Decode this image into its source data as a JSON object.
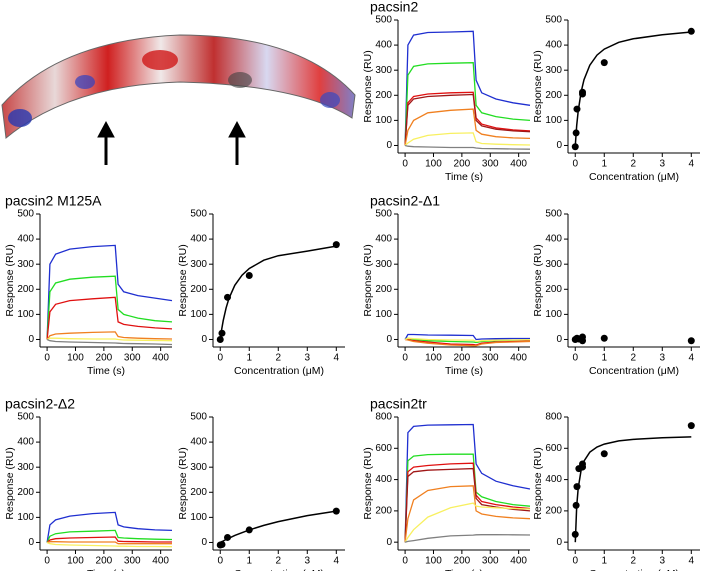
{
  "chart_data": [
    {
      "type": "line",
      "title": "pacsin2",
      "xlabel": "Time (s)",
      "ylabel": "Response (RU)",
      "x": [
        0,
        10,
        30,
        80,
        160,
        240,
        250,
        270,
        320,
        380,
        440
      ],
      "series": [
        {
          "color": "#1f2fd0",
          "values": [
            0,
            400,
            440,
            450,
            452,
            455,
            260,
            210,
            185,
            170,
            160
          ]
        },
        {
          "color": "#22dd22",
          "values": [
            0,
            280,
            315,
            325,
            328,
            330,
            160,
            130,
            115,
            105,
            100
          ]
        },
        {
          "color": "#e01010",
          "values": [
            0,
            170,
            195,
            205,
            210,
            212,
            110,
            85,
            70,
            62,
            58
          ]
        },
        {
          "color": "#a01818",
          "values": [
            0,
            160,
            185,
            195,
            200,
            203,
            100,
            78,
            65,
            58,
            55
          ]
        },
        {
          "color": "#f08020",
          "values": [
            0,
            60,
            100,
            130,
            140,
            145,
            60,
            45,
            35,
            30,
            28
          ]
        },
        {
          "color": "#f8f060",
          "values": [
            0,
            10,
            25,
            40,
            48,
            50,
            15,
            8,
            5,
            3,
            2
          ]
        },
        {
          "color": "#808080",
          "values": [
            0,
            -3,
            -5,
            -6,
            -8,
            -8,
            -10,
            -12,
            -13,
            -14,
            -15
          ]
        }
      ],
      "xlim": [
        -25,
        440
      ],
      "xticks": [
        0,
        100,
        200,
        300,
        400
      ],
      "ylim": [
        -30,
        500
      ],
      "yticks": [
        0,
        100,
        200,
        300,
        400,
        500
      ]
    },
    {
      "type": "scatter",
      "xlabel": "Concentration (μM)",
      "ylabel": "Response (RU)",
      "color": "#000000",
      "x": [
        0,
        0.03,
        0.06,
        0.25,
        0.25,
        1,
        4
      ],
      "values": [
        -5,
        50,
        145,
        205,
        212,
        330,
        455
      ],
      "fit_x": [
        0,
        0.05,
        0.1,
        0.2,
        0.3,
        0.5,
        0.75,
        1,
        1.5,
        2,
        3,
        4
      ],
      "fit_values": [
        0,
        80,
        137,
        213,
        262,
        320,
        360,
        384,
        411,
        425,
        441,
        452
      ],
      "xlim": [
        -0.25,
        4.3
      ],
      "xticks": [
        0,
        1,
        2,
        3,
        4
      ],
      "ylim": [
        -30,
        500
      ],
      "yticks": [
        0,
        100,
        200,
        300,
        400,
        500
      ]
    },
    {
      "type": "line",
      "title": "pacsin2 M125A",
      "xlabel": "Time (s)",
      "ylabel": "Response (RU)",
      "x": [
        0,
        10,
        30,
        80,
        160,
        240,
        250,
        270,
        320,
        380,
        440
      ],
      "series": [
        {
          "color": "#1f2fd0",
          "values": [
            0,
            300,
            340,
            360,
            370,
            375,
            220,
            190,
            175,
            165,
            155
          ]
        },
        {
          "color": "#22dd22",
          "values": [
            0,
            190,
            225,
            240,
            248,
            252,
            120,
            100,
            85,
            75,
            70
          ]
        },
        {
          "color": "#e01010",
          "values": [
            0,
            110,
            140,
            155,
            162,
            168,
            70,
            60,
            52,
            46,
            42
          ]
        },
        {
          "color": "#f08020",
          "values": [
            0,
            15,
            22,
            25,
            28,
            30,
            12,
            8,
            5,
            3,
            2
          ]
        },
        {
          "color": "#f8f060",
          "values": [
            0,
            5,
            5,
            3,
            2,
            2,
            0,
            -2,
            -3,
            -4,
            -5
          ]
        },
        {
          "color": "#808080",
          "values": [
            0,
            -5,
            -8,
            -10,
            -12,
            -14,
            -15,
            -16,
            -17,
            -18,
            -20
          ]
        }
      ],
      "xlim": [
        -25,
        440
      ],
      "xticks": [
        0,
        100,
        200,
        300,
        400
      ],
      "ylim": [
        -30,
        500
      ],
      "yticks": [
        0,
        100,
        200,
        300,
        400,
        500
      ]
    },
    {
      "type": "scatter",
      "xlabel": "Concentration (μM)",
      "ylabel": "Response (RU)",
      "color": "#000000",
      "x": [
        0,
        0.06,
        0.25,
        1,
        4
      ],
      "values": [
        0,
        25,
        168,
        255,
        378
      ],
      "fit_x": [
        0,
        0.05,
        0.1,
        0.2,
        0.3,
        0.5,
        0.75,
        1,
        1.5,
        2,
        3,
        4
      ],
      "fit_values": [
        0,
        41,
        75,
        126,
        164,
        216,
        256,
        283,
        316,
        334,
        352,
        372
      ],
      "xlim": [
        -0.25,
        4.3
      ],
      "xticks": [
        0,
        1,
        2,
        3,
        4
      ],
      "ylim": [
        -30,
        500
      ],
      "yticks": [
        0,
        100,
        200,
        300,
        400,
        500
      ]
    },
    {
      "type": "line",
      "title": "pacsin2-Δ1",
      "xlabel": "Time (s)",
      "ylabel": "Response (RU)",
      "x": [
        0,
        10,
        30,
        80,
        160,
        240,
        250,
        270,
        320,
        380,
        440
      ],
      "series": [
        {
          "color": "#1f2fd0",
          "values": [
            0,
            20,
            20,
            18,
            17,
            16,
            0,
            2,
            3,
            4,
            4
          ]
        },
        {
          "color": "#22dd22",
          "values": [
            0,
            5,
            0,
            -5,
            -8,
            -10,
            -12,
            -8,
            -5,
            -3,
            -2
          ]
        },
        {
          "color": "#e01010",
          "values": [
            0,
            0,
            -5,
            -10,
            -18,
            -20,
            -22,
            -15,
            -10,
            -8,
            -6
          ]
        },
        {
          "color": "#f08020",
          "values": [
            0,
            -2,
            -8,
            -15,
            -22,
            -25,
            -25,
            -18,
            -12,
            -10,
            -8
          ]
        },
        {
          "color": "#f8f060",
          "values": [
            0,
            5,
            3,
            0,
            -2,
            -3,
            -8,
            -5,
            -3,
            -2,
            -1
          ]
        }
      ],
      "xlim": [
        -25,
        440
      ],
      "xticks": [
        0,
        100,
        200,
        300,
        400
      ],
      "ylim": [
        -30,
        500
      ],
      "yticks": [
        0,
        100,
        200,
        300,
        400,
        500
      ]
    },
    {
      "type": "scatter",
      "xlabel": "Concentration (μM)",
      "ylabel": "Response (RU)",
      "color": "#000000",
      "x": [
        0,
        0.06,
        0.125,
        0.25,
        0.25,
        1,
        4
      ],
      "values": [
        0,
        5,
        2,
        10,
        -5,
        5,
        -5
      ],
      "xlim": [
        -0.25,
        4.3
      ],
      "xticks": [
        0,
        1,
        2,
        3,
        4
      ],
      "ylim": [
        -30,
        500
      ],
      "yticks": [
        0,
        100,
        200,
        300,
        400,
        500
      ]
    },
    {
      "type": "line",
      "title": "pacsin2-Δ2",
      "xlabel": "Time (s)",
      "ylabel": "Response (RU)",
      "x": [
        0,
        10,
        30,
        80,
        160,
        240,
        250,
        270,
        320,
        380,
        440
      ],
      "series": [
        {
          "color": "#1f2fd0",
          "values": [
            0,
            70,
            90,
            105,
            115,
            120,
            70,
            62,
            55,
            50,
            48
          ]
        },
        {
          "color": "#22dd22",
          "values": [
            0,
            25,
            35,
            42,
            45,
            48,
            20,
            18,
            15,
            13,
            12
          ]
        },
        {
          "color": "#e01010",
          "values": [
            0,
            10,
            15,
            18,
            20,
            22,
            5,
            4,
            3,
            2,
            2
          ]
        },
        {
          "color": "#f08020",
          "values": [
            0,
            3,
            3,
            2,
            2,
            2,
            -5,
            -5,
            -5,
            -5,
            -5
          ]
        },
        {
          "color": "#f8f060",
          "values": [
            0,
            -5,
            -8,
            -10,
            -12,
            -14,
            -15,
            -15,
            -16,
            -16,
            -17
          ]
        }
      ],
      "xlim": [
        -25,
        440
      ],
      "xticks": [
        0,
        100,
        200,
        300,
        400
      ],
      "ylim": [
        -30,
        500
      ],
      "yticks": [
        0,
        100,
        200,
        300,
        400,
        500
      ]
    },
    {
      "type": "scatter",
      "xlabel": "Concentration (μM)",
      "ylabel": "Response (RU)",
      "color": "#000000",
      "x": [
        0,
        0.06,
        0.25,
        1,
        4
      ],
      "values": [
        -10,
        -8,
        20,
        50,
        125
      ],
      "fit_x": [
        0,
        0.05,
        0.1,
        0.2,
        0.3,
        0.5,
        0.75,
        1,
        1.5,
        2,
        3,
        4
      ],
      "fit_values": [
        0,
        3,
        6,
        12,
        17,
        28,
        39,
        50,
        68,
        83,
        107,
        125
      ],
      "xlim": [
        -0.25,
        4.3
      ],
      "xticks": [
        0,
        1,
        2,
        3,
        4
      ],
      "ylim": [
        -30,
        500
      ],
      "yticks": [
        0,
        100,
        200,
        300,
        400,
        500
      ]
    },
    {
      "type": "line",
      "title": "pacsin2tr",
      "xlabel": "Time (s)",
      "ylabel": "Response (RU)",
      "x": [
        0,
        10,
        30,
        80,
        160,
        240,
        250,
        270,
        320,
        380,
        440
      ],
      "series": [
        {
          "color": "#1f2fd0",
          "values": [
            0,
            700,
            740,
            748,
            750,
            752,
            500,
            440,
            390,
            360,
            340
          ]
        },
        {
          "color": "#22dd22",
          "values": [
            0,
            520,
            550,
            560,
            562,
            563,
            320,
            290,
            260,
            240,
            230
          ]
        },
        {
          "color": "#e01010",
          "values": [
            0,
            450,
            480,
            490,
            500,
            505,
            300,
            260,
            240,
            225,
            215
          ]
        },
        {
          "color": "#a01818",
          "values": [
            0,
            420,
            450,
            460,
            465,
            470,
            280,
            240,
            225,
            210,
            200
          ]
        },
        {
          "color": "#f08020",
          "values": [
            0,
            150,
            270,
            330,
            355,
            360,
            200,
            180,
            165,
            155,
            150
          ]
        },
        {
          "color": "#f8f060",
          "values": [
            0,
            30,
            80,
            160,
            220,
            250,
            230,
            225,
            220,
            215,
            212
          ]
        },
        {
          "color": "#808080",
          "values": [
            0,
            5,
            10,
            25,
            40,
            45,
            47,
            48,
            48,
            47,
            46
          ]
        }
      ],
      "xlim": [
        -25,
        440
      ],
      "xticks": [
        0,
        100,
        200,
        300,
        400
      ],
      "ylim": [
        -50,
        800
      ],
      "yticks": [
        0,
        200,
        400,
        600,
        800
      ]
    },
    {
      "type": "scatter",
      "xlabel": "Concentration (μM)",
      "ylabel": "Response (RU)",
      "color": "#000000",
      "x": [
        0,
        0.03,
        0.06,
        0.125,
        0.25,
        0.25,
        1,
        4
      ],
      "values": [
        50,
        235,
        355,
        470,
        500,
        480,
        565,
        745
      ],
      "fit_x": [
        0,
        0.05,
        0.1,
        0.2,
        0.3,
        0.5,
        0.75,
        1,
        1.5,
        2,
        3,
        4
      ],
      "fit_values": [
        0,
        230,
        345,
        460,
        518,
        575,
        608,
        627,
        647,
        657,
        667,
        673
      ],
      "xlim": [
        -0.25,
        4.3
      ],
      "xticks": [
        0,
        1,
        2,
        3,
        4
      ],
      "ylim": [
        -50,
        800
      ],
      "yticks": [
        0,
        200,
        400,
        600,
        800
      ]
    }
  ]
}
